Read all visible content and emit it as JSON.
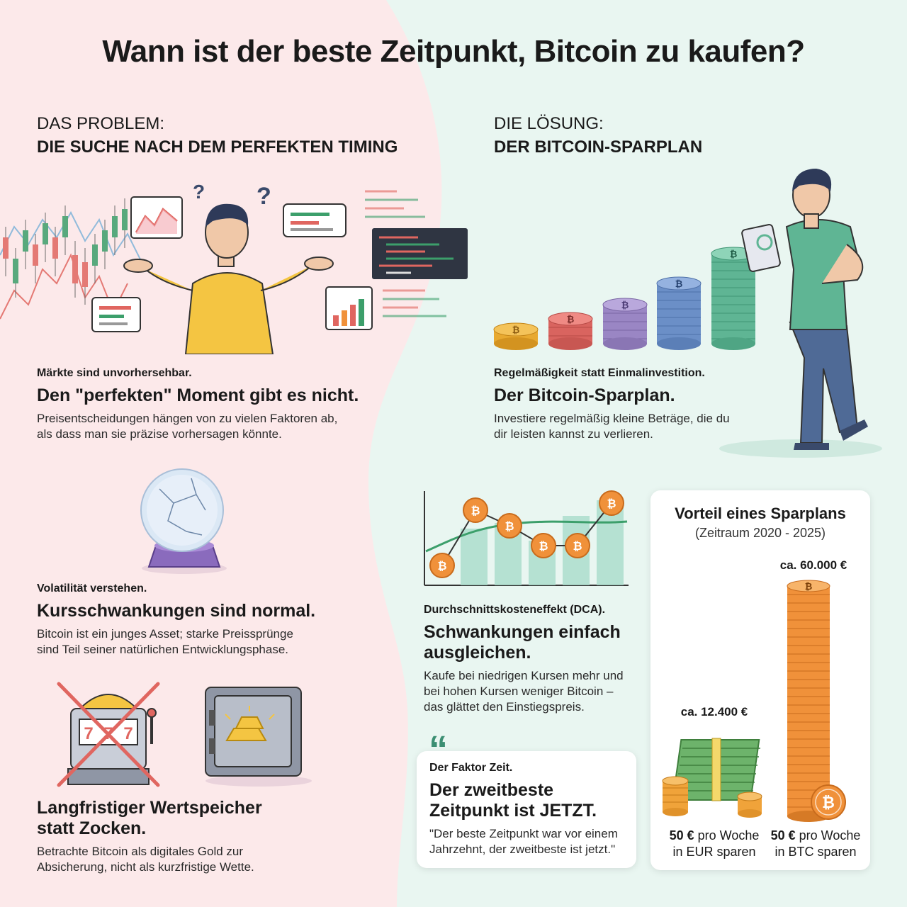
{
  "title": "Wann ist der beste Zeitpunkt, Bitcoin zu kaufen?",
  "problem": {
    "kicker": "DAS PROBLEM:",
    "heading": "DIE SUCHE NACH DEM PERFEKTEN TIMING",
    "blocks": [
      {
        "kicker": "Märkte sind unvorhersehbar.",
        "headline": "Den \"perfekten\" Moment gibt es nicht.",
        "body": "Preisentscheidungen hängen von zu vielen Faktoren ab,\nals dass man sie präzise vorhersagen könnte."
      },
      {
        "kicker": "Volatilität verstehen.",
        "headline": "Kursschwankungen sind normal.",
        "body": "Bitcoin ist ein junges Asset; starke Preissprünge\nsind Teil seiner natürlichen Entwicklungsphase."
      },
      {
        "kicker": "",
        "headline": "Langfristiger Wertspeicher\nstatt Zocken.",
        "body": "Betrachte Bitcoin als digitales Gold zur\nAbsicherung, nicht als kurzfristige Wette."
      }
    ]
  },
  "solution": {
    "kicker": "DIE LÖSUNG:",
    "heading": "DER BITCOIN-SPARPLAN",
    "blocks": [
      {
        "kicker": "Regelmäßigkeit statt Einmalinvestition.",
        "headline": "Der Bitcoin-Sparplan.",
        "body": "Investiere regelmäßig kleine Beträge, die du\ndir leisten kannst zu verlieren."
      },
      {
        "kicker": "Durchschnittskosteneffekt (DCA).",
        "headline": "Schwankungen einfach\nausgleichen.",
        "body": "Kaufe bei niedrigen Kursen mehr und\nbei hohen Kursen weniger Bitcoin –\ndas glättet den Einstiegspreis."
      }
    ]
  },
  "quote": {
    "mark": "“",
    "kicker": "Der Faktor Zeit.",
    "headline": "Der zweitbeste\nZeitpunkt ist JETZT.",
    "body": "\"Der beste Zeitpunkt war vor einem\nJahrzehnt, der zweitbeste ist jetzt.\""
  },
  "comparison": {
    "title": "Vorteil eines Sparplans",
    "subtitle": "(Zeitraum 2020 - 2025)",
    "eur": {
      "amount": "ca. 12.400 €",
      "label_bold": "50 €",
      "label_rest": " pro Woche",
      "label_line2": "in EUR sparen"
    },
    "btc": {
      "amount": "ca. 60.000 €",
      "label_bold": "50 €",
      "label_rest": " pro Woche",
      "label_line2": "in BTC sparen"
    }
  },
  "coin_symbol": "₿",
  "icons": {
    "problem_person": "confused-person-icon",
    "solution_person": "person-with-tablet-icon",
    "crystal_ball": "cracked-crystal-ball-icon",
    "slot_machine": "crossed-slot-machine-icon",
    "safe": "gold-safe-icon",
    "coin_stacks": "coin-stacks-icon",
    "dca_chart": "dca-chart-icon",
    "cash_stack": "cash-stack-icon",
    "btc_tower": "bitcoin-tower-icon"
  },
  "colors": {
    "problem_bg": "#fce9ea",
    "solution_bg": "#e9f6f1",
    "accent_green": "#3c8f73",
    "coin_orange": "#f0913a",
    "cross_red": "#e06660"
  }
}
